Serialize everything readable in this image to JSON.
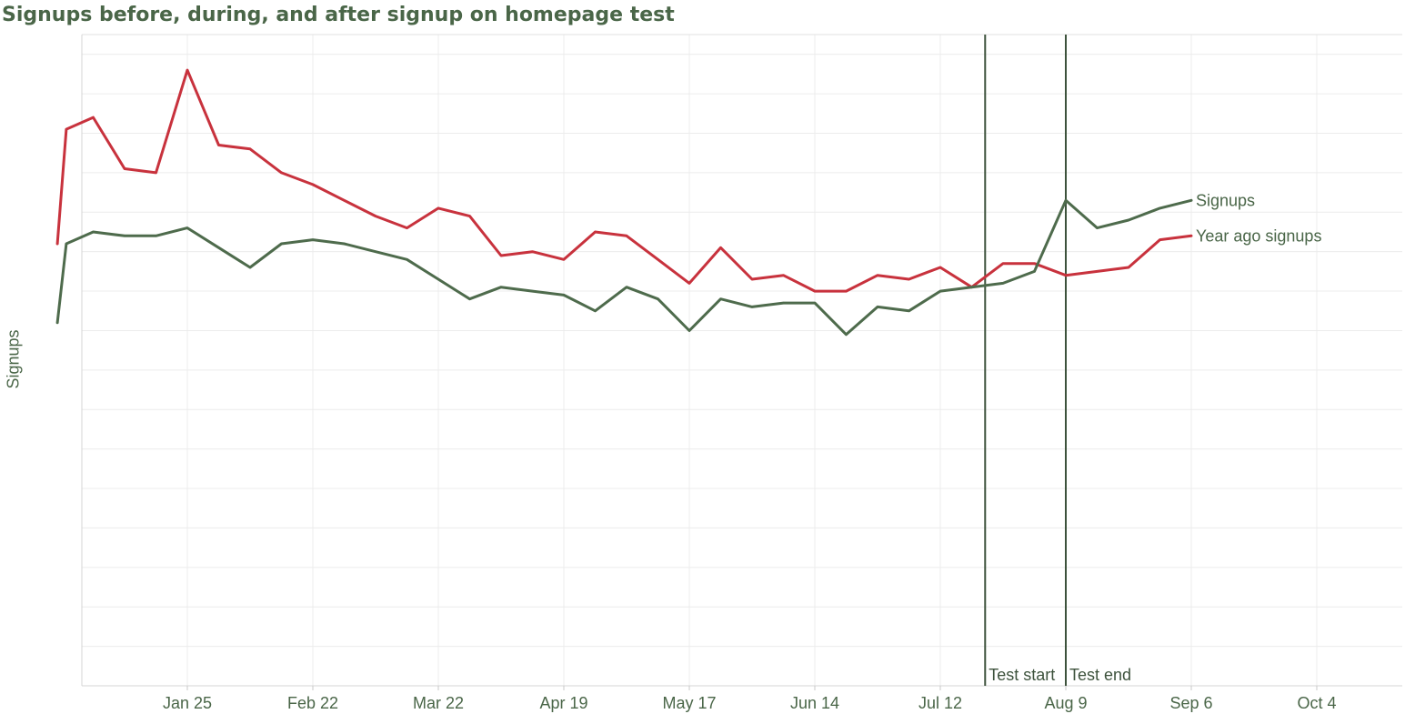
{
  "chart_data": {
    "type": "line",
    "title": "Signups before, during, and after signup on homepage test",
    "xlabel": "",
    "ylabel": "Signups",
    "x_tick_labels": [
      "Jan 25",
      "Feb 22",
      "Mar 22",
      "Apr 19",
      "May 17",
      "Jun 14",
      "Jul 12",
      "Aug 9",
      "Sep 6",
      "Oct 4"
    ],
    "y_tick_labels_shown": false,
    "grid": true,
    "colors": {
      "signups": "#4e6b4c",
      "year_ago_signups": "#c8323d",
      "title": "#4a6648",
      "reference_line": "#3d523c",
      "grid": "#ececec"
    },
    "series": [
      {
        "name": "Signups",
        "color": "#4e6b4c",
        "x": [
          "Dec 28",
          "Dec 30",
          "Jan 4",
          "Jan 11",
          "Jan 18",
          "Jan 25",
          "Feb 1",
          "Feb 8",
          "Feb 15",
          "Feb 22",
          "Mar 1",
          "Mar 8",
          "Mar 15",
          "Mar 22",
          "Mar 29",
          "Apr 5",
          "Apr 12",
          "Apr 19",
          "Apr 26",
          "May 3",
          "May 10",
          "May 17",
          "May 24",
          "May 31",
          "Jun 7",
          "Jun 14",
          "Jun 21",
          "Jun 28",
          "Jul 5",
          "Jul 12",
          "Jul 19",
          "Jul 26",
          "Aug 2",
          "Aug 9",
          "Aug 16",
          "Aug 23",
          "Aug 30",
          "Sep 6",
          "Sep 13"
        ],
        "values": [
          92,
          112,
          115,
          114,
          114,
          116,
          111,
          106,
          112,
          113,
          112,
          110,
          108,
          103,
          98,
          101,
          100,
          99,
          95,
          101,
          98,
          90,
          98,
          96,
          97,
          97,
          89,
          96,
          95,
          100,
          101,
          102,
          105,
          123,
          116,
          118,
          121,
          123,
          null
        ],
        "value_scale": "relative (no y-axis values printed)"
      },
      {
        "name": "Year ago signups",
        "color": "#c8323d",
        "x": [
          "Dec 28",
          "Dec 30",
          "Jan 4",
          "Jan 11",
          "Jan 18",
          "Jan 25",
          "Feb 1",
          "Feb 8",
          "Feb 15",
          "Feb 22",
          "Mar 1",
          "Mar 8",
          "Mar 15",
          "Mar 22",
          "Mar 29",
          "Apr 5",
          "Apr 12",
          "Apr 19",
          "Apr 26",
          "May 3",
          "May 10",
          "May 17",
          "May 24",
          "May 31",
          "Jun 7",
          "Jun 14",
          "Jun 21",
          "Jun 28",
          "Jul 5",
          "Jul 12",
          "Jul 19",
          "Jul 26",
          "Aug 2",
          "Aug 9",
          "Aug 16",
          "Aug 23",
          "Aug 30",
          "Sep 6",
          "Sep 13"
        ],
        "values": [
          112,
          141,
          144,
          131,
          130,
          156,
          137,
          136,
          130,
          127,
          123,
          119,
          116,
          121,
          119,
          109,
          110,
          108,
          115,
          114,
          108,
          102,
          111,
          103,
          104,
          100,
          100,
          104,
          103,
          106,
          101,
          107,
          107,
          104,
          105,
          106,
          113,
          114,
          null
        ],
        "value_scale": "relative (no y-axis values printed)"
      }
    ],
    "reference_lines": [
      {
        "x": "Jul 22",
        "label": "Test start"
      },
      {
        "x": "Aug 9",
        "label": "Test end"
      }
    ]
  },
  "labels": {
    "title": "Signups before, during, and after signup on homepage test",
    "y_axis": "Signups",
    "series_signups": "Signups",
    "series_year_ago": "Year ago signups",
    "test_start": "Test start",
    "test_end": "Test end"
  }
}
